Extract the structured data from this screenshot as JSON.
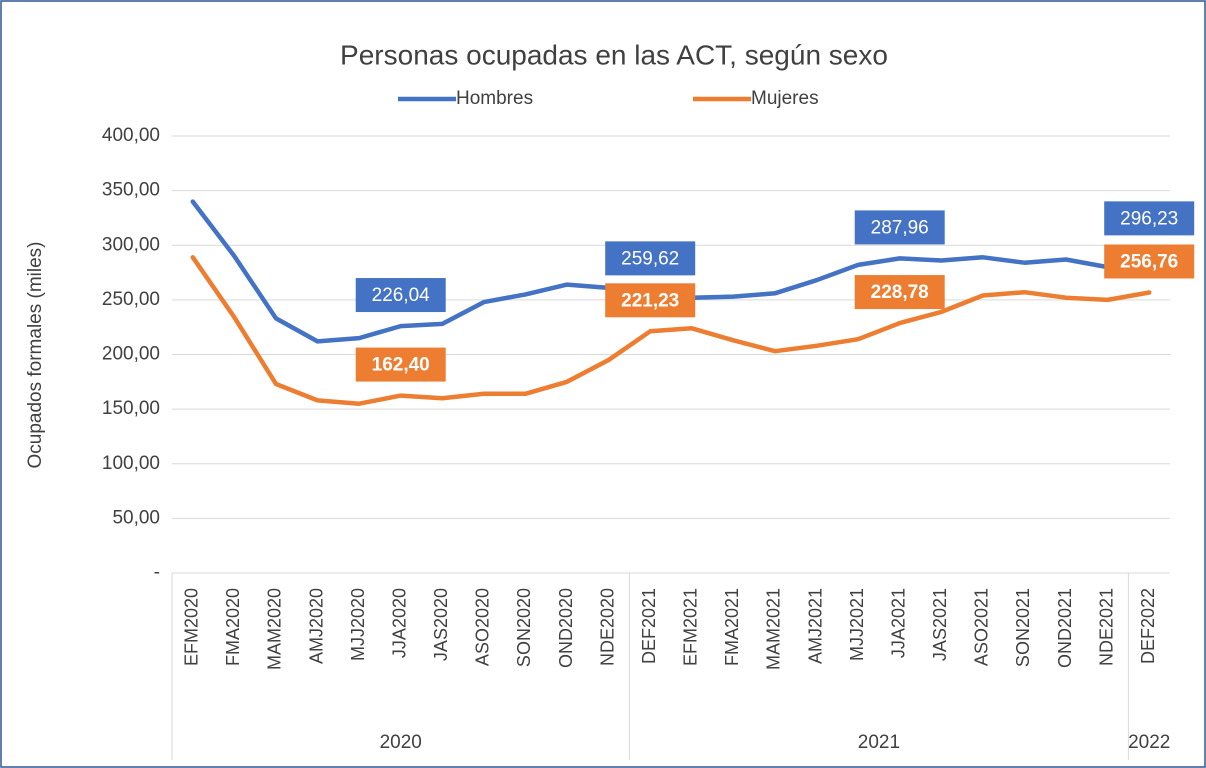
{
  "chart_data": {
    "type": "line",
    "title": "Personas ocupadas en las ACT, según sexo",
    "y_label": "Ocupados formales (miles)",
    "categories": [
      "EFM2020",
      "FMA2020",
      "MAM2020",
      "AMJ2020",
      "MJJ2020",
      "JJA2020",
      "JAS2020",
      "ASO2020",
      "SON2020",
      "OND2020",
      "NDE2020",
      "DEF2021",
      "EFM2021",
      "FMA2021",
      "MAM2021",
      "AMJ2021",
      "MJJ2021",
      "JJA2021",
      "JAS2021",
      "ASO2021",
      "SON2021",
      "OND2021",
      "NDE2021",
      "DEF2022"
    ],
    "groups": [
      {
        "label": "2020",
        "count": 11
      },
      {
        "label": "2021",
        "count": 12
      },
      {
        "label": "2022",
        "count": 1
      }
    ],
    "series": [
      {
        "name": "Hombres",
        "color": "#4472c4",
        "values": [
          340,
          290,
          233,
          212,
          215,
          226.04,
          228,
          248,
          255,
          264,
          261,
          259.62,
          252,
          253,
          256,
          268,
          282,
          287.96,
          286,
          289,
          284,
          287,
          280,
          296.23
        ],
        "value_labels": [
          null,
          null,
          null,
          null,
          null,
          "226,04",
          null,
          null,
          null,
          null,
          null,
          "259,62",
          null,
          null,
          null,
          null,
          null,
          "287,96",
          null,
          null,
          null,
          null,
          null,
          "296,23"
        ]
      },
      {
        "name": "Mujeres",
        "color": "#ed7d31",
        "values": [
          289,
          234,
          173,
          158,
          155,
          162.4,
          160,
          164,
          164,
          175,
          195,
          221.23,
          224,
          213,
          203,
          208,
          214,
          228.78,
          239,
          254,
          257,
          252,
          250,
          256.76
        ],
        "value_labels": [
          null,
          null,
          null,
          null,
          null,
          "162,40",
          null,
          null,
          null,
          null,
          null,
          "221,23",
          null,
          null,
          null,
          null,
          null,
          "228,78",
          null,
          null,
          null,
          null,
          null,
          "256,76"
        ]
      }
    ],
    "ylim": [
      0,
      400
    ],
    "yticks": [
      {
        "value": 0,
        "label": "-"
      },
      {
        "value": 50,
        "label": "50,00"
      },
      {
        "value": 100,
        "label": "100,00"
      },
      {
        "value": 150,
        "label": "150,00"
      },
      {
        "value": 200,
        "label": "200,00"
      },
      {
        "value": 250,
        "label": "250,00"
      },
      {
        "value": 300,
        "label": "300,00"
      },
      {
        "value": 350,
        "label": "350,00"
      },
      {
        "value": 400,
        "label": "400,00"
      }
    ],
    "grid": true,
    "legend": "top"
  }
}
